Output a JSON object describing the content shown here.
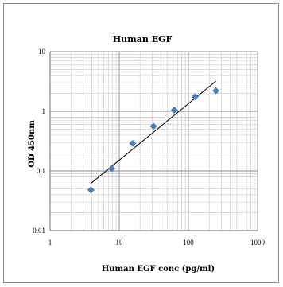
{
  "chart_data": {
    "type": "scatter",
    "title": "Human EGF",
    "xlabel": "Human EGF  conc (pg/ml)",
    "ylabel": "OD 450nm",
    "x_scale": "log",
    "y_scale": "log",
    "xlim": [
      1,
      1000
    ],
    "ylim": [
      0.01,
      10
    ],
    "x_ticks": [
      "1",
      "10",
      "100",
      "1000"
    ],
    "y_ticks": [
      "0.01",
      "0.1",
      "1",
      "10"
    ],
    "grid": true,
    "legend": "none",
    "series": [
      {
        "points": [
          {
            "x": 3.9,
            "y": 0.048
          },
          {
            "x": 7.8,
            "y": 0.11
          },
          {
            "x": 15.6,
            "y": 0.29
          },
          {
            "x": 31.25,
            "y": 0.56
          },
          {
            "x": 62.5,
            "y": 1.05
          },
          {
            "x": 125,
            "y": 1.75
          },
          {
            "x": 250,
            "y": 2.2
          }
        ],
        "marker": "diamond",
        "color": "#4a7ebb"
      }
    ],
    "trendline": {
      "type": "power",
      "from": {
        "x": 3.9,
        "y": 0.062
      },
      "to": {
        "x": 250,
        "y": 3.2
      },
      "color": "#000000"
    }
  }
}
